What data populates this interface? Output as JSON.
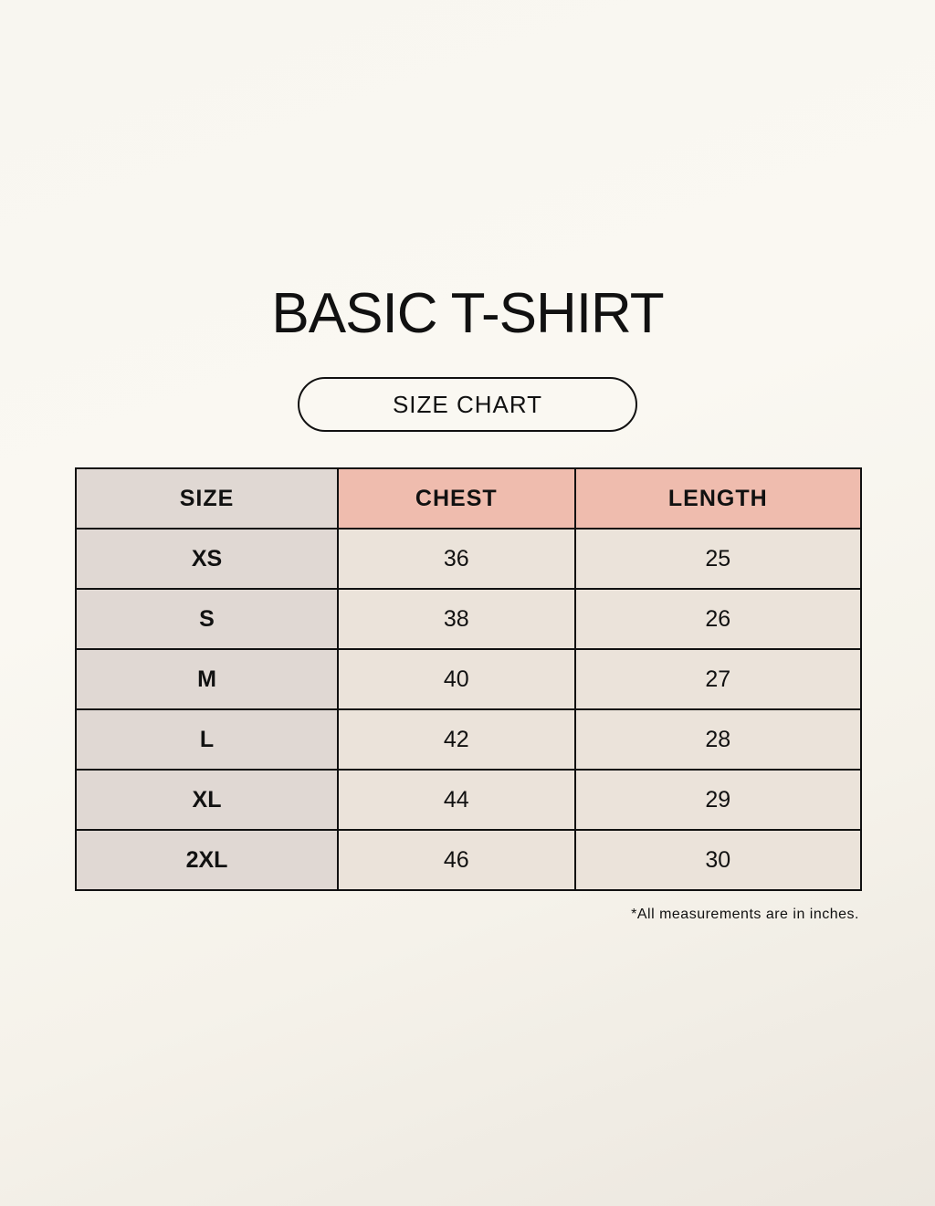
{
  "title": "BASIC T-SHIRT",
  "subtitle": "SIZE CHART",
  "table": {
    "headers": [
      "SIZE",
      "CHEST",
      "LENGTH"
    ],
    "rows": [
      [
        "XS",
        "36",
        "25"
      ],
      [
        "S",
        "38",
        "26"
      ],
      [
        "M",
        "40",
        "27"
      ],
      [
        "L",
        "42",
        "28"
      ],
      [
        "XL",
        "44",
        "29"
      ],
      [
        "2XL",
        "46",
        "30"
      ]
    ]
  },
  "note": "*All measurements are in inches.",
  "colors": {
    "size_column": "#e0d8d3",
    "header_accent": "#efbcae",
    "cell": "#ebe3da"
  }
}
